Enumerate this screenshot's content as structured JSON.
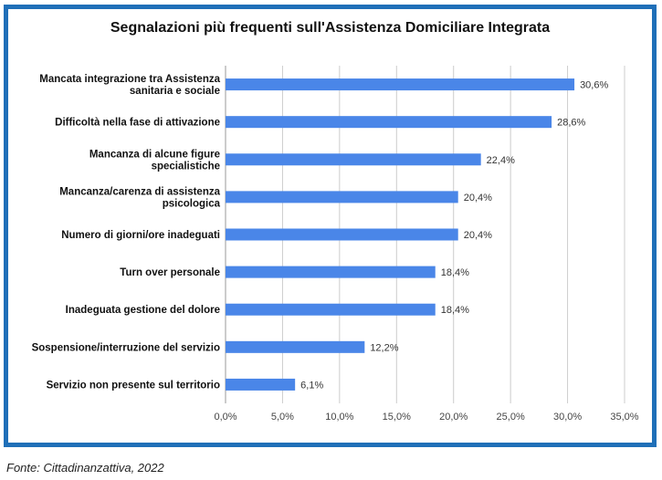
{
  "chart_data": {
    "type": "bar",
    "orientation": "horizontal",
    "title": "Segnalazioni più frequenti sull'Assistenza Domiciliare Integrata",
    "categories": [
      [
        "Mancata integrazione tra Assistenza",
        "sanitaria e sociale"
      ],
      [
        "Difficoltà nella fase di attivazione"
      ],
      [
        "Mancanza di alcune figure",
        "specialistiche"
      ],
      [
        "Mancanza/carenza di assistenza",
        "psicologica"
      ],
      [
        "Numero di giorni/ore inadeguati"
      ],
      [
        "Turn over personale"
      ],
      [
        "Inadeguata gestione del dolore"
      ],
      [
        "Sospensione/interruzione del servizio"
      ],
      [
        "Servizio non presente sul territorio"
      ]
    ],
    "values": [
      30.6,
      28.6,
      22.4,
      20.4,
      20.4,
      18.4,
      18.4,
      12.2,
      6.1
    ],
    "value_labels": [
      "30,6%",
      "28,6%",
      "22,4%",
      "20,4%",
      "20,4%",
      "18,4%",
      "18,4%",
      "12,2%",
      "6,1%"
    ],
    "xlim": [
      0,
      35
    ],
    "x_ticks": [
      "0,0%",
      "5,0%",
      "10,0%",
      "15,0%",
      "20,0%",
      "25,0%",
      "30,0%",
      "35,0%"
    ],
    "grid": true,
    "bar_color": "#4a86e8",
    "border_color": "#1f6fb8"
  },
  "source": "Fonte: Cittadinanzattiva, 2022"
}
